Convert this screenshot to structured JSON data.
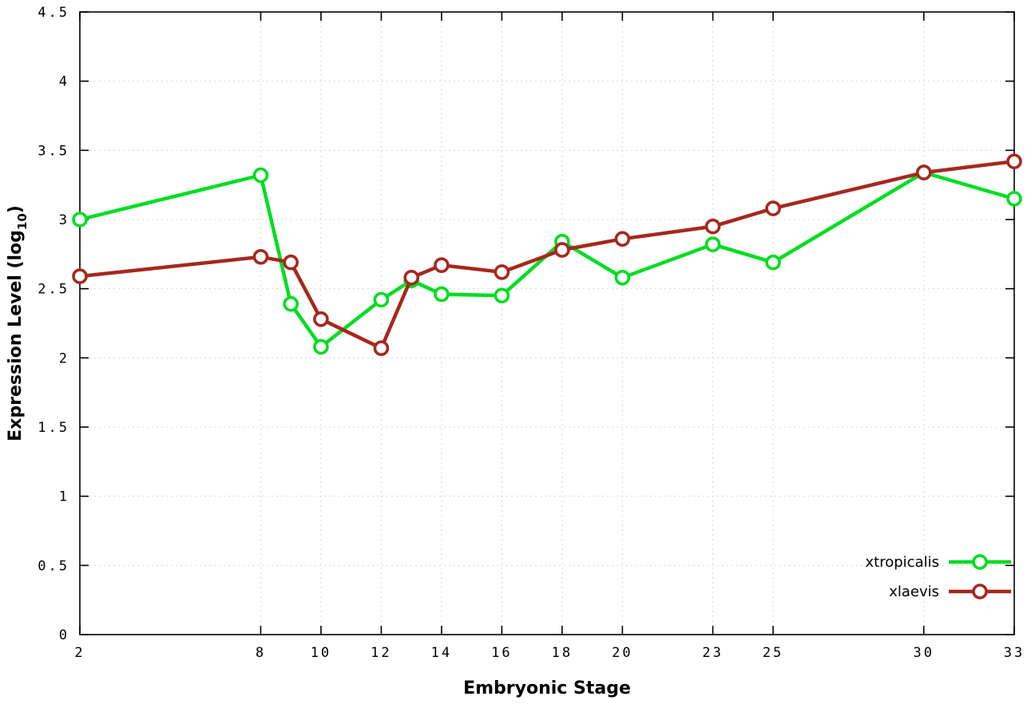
{
  "chart_data": {
    "type": "line",
    "title": "",
    "xlabel": "Embryonic Stage",
    "ylabel": {
      "main": "Expression Level (log",
      "sub": "10",
      "close": ")"
    },
    "x": [
      2,
      8,
      9,
      10,
      12,
      13,
      14,
      16,
      18,
      20,
      23,
      25,
      30,
      33
    ],
    "x_tick_labels": [
      2,
      8,
      10,
      12,
      14,
      16,
      18,
      20,
      23,
      25,
      30,
      33
    ],
    "xlim": [
      2,
      33
    ],
    "ylim": [
      0,
      4.5
    ],
    "y_tick_step": 0.5,
    "grid": true,
    "legend_position": "bottom-right",
    "series": [
      {
        "name": "xtropicalis",
        "color": "#00dd22",
        "values": [
          3.0,
          3.32,
          2.39,
          2.08,
          2.42,
          2.56,
          2.46,
          2.45,
          2.84,
          2.58,
          2.82,
          2.69,
          3.34,
          3.15
        ]
      },
      {
        "name": "xlaevis",
        "color": "#a5281e",
        "values": [
          2.59,
          2.73,
          2.69,
          2.28,
          2.07,
          2.58,
          2.67,
          2.62,
          2.78,
          2.86,
          2.95,
          3.08,
          3.34,
          3.42
        ]
      }
    ]
  },
  "styles": {
    "background": "#ffffff",
    "grid_color": "#d8d8d8",
    "axis_color": "#000000"
  }
}
